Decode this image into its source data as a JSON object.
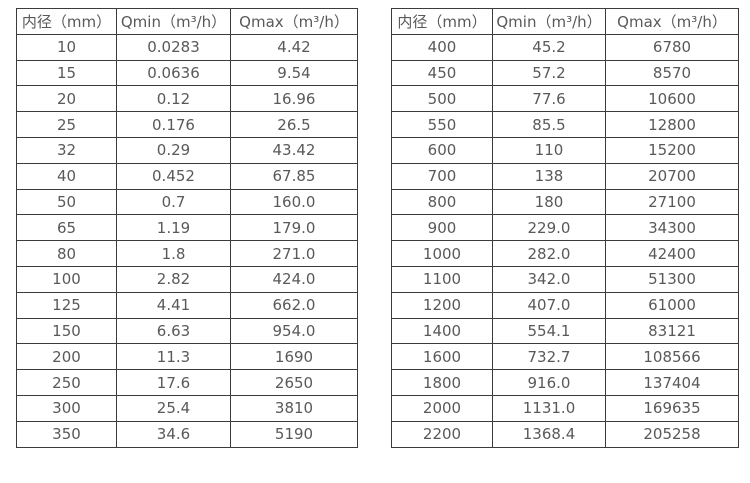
{
  "page": {
    "background_color": "#ffffff",
    "border_color": "#3b3b3b",
    "text_color": "#595959"
  },
  "chart_data": [
    {
      "type": "table",
      "title": "",
      "columns": [
        "内径（mm）",
        "Qmin（m³/h）",
        "Qmax（m³/h）"
      ],
      "rows": [
        [
          "10",
          "0.0283",
          "4.42"
        ],
        [
          "15",
          "0.0636",
          "9.54"
        ],
        [
          "20",
          "0.12",
          "16.96"
        ],
        [
          "25",
          "0.176",
          "26.5"
        ],
        [
          "32",
          "0.29",
          "43.42"
        ],
        [
          "40",
          "0.452",
          "67.85"
        ],
        [
          "50",
          "0.7",
          "160.0"
        ],
        [
          "65",
          "1.19",
          "179.0"
        ],
        [
          "80",
          "1.8",
          "271.0"
        ],
        [
          "100",
          "2.82",
          "424.0"
        ],
        [
          "125",
          "4.41",
          "662.0"
        ],
        [
          "150",
          "6.63",
          "954.0"
        ],
        [
          "200",
          "11.3",
          "1690"
        ],
        [
          "250",
          "17.6",
          "2650"
        ],
        [
          "300",
          "25.4",
          "3810"
        ],
        [
          "350",
          "34.6",
          "5190"
        ]
      ]
    },
    {
      "type": "table",
      "title": "",
      "columns": [
        "内径（mm）",
        "Qmin（m³/h）",
        "Qmax（m³/h）"
      ],
      "rows": [
        [
          "400",
          "45.2",
          "6780"
        ],
        [
          "450",
          "57.2",
          "8570"
        ],
        [
          "500",
          "77.6",
          "10600"
        ],
        [
          "550",
          "85.5",
          "12800"
        ],
        [
          "600",
          "110",
          "15200"
        ],
        [
          "700",
          "138",
          "20700"
        ],
        [
          "800",
          "180",
          "27100"
        ],
        [
          "900",
          "229.0",
          "34300"
        ],
        [
          "1000",
          "282.0",
          "42400"
        ],
        [
          "1100",
          "342.0",
          "51300"
        ],
        [
          "1200",
          "407.0",
          "61000"
        ],
        [
          "1400",
          "554.1",
          "83121"
        ],
        [
          "1600",
          "732.7",
          "108566"
        ],
        [
          "1800",
          "916.0",
          "137404"
        ],
        [
          "2000",
          "1131.0",
          "169635"
        ],
        [
          "2200",
          "1368.4",
          "205258"
        ]
      ]
    }
  ]
}
